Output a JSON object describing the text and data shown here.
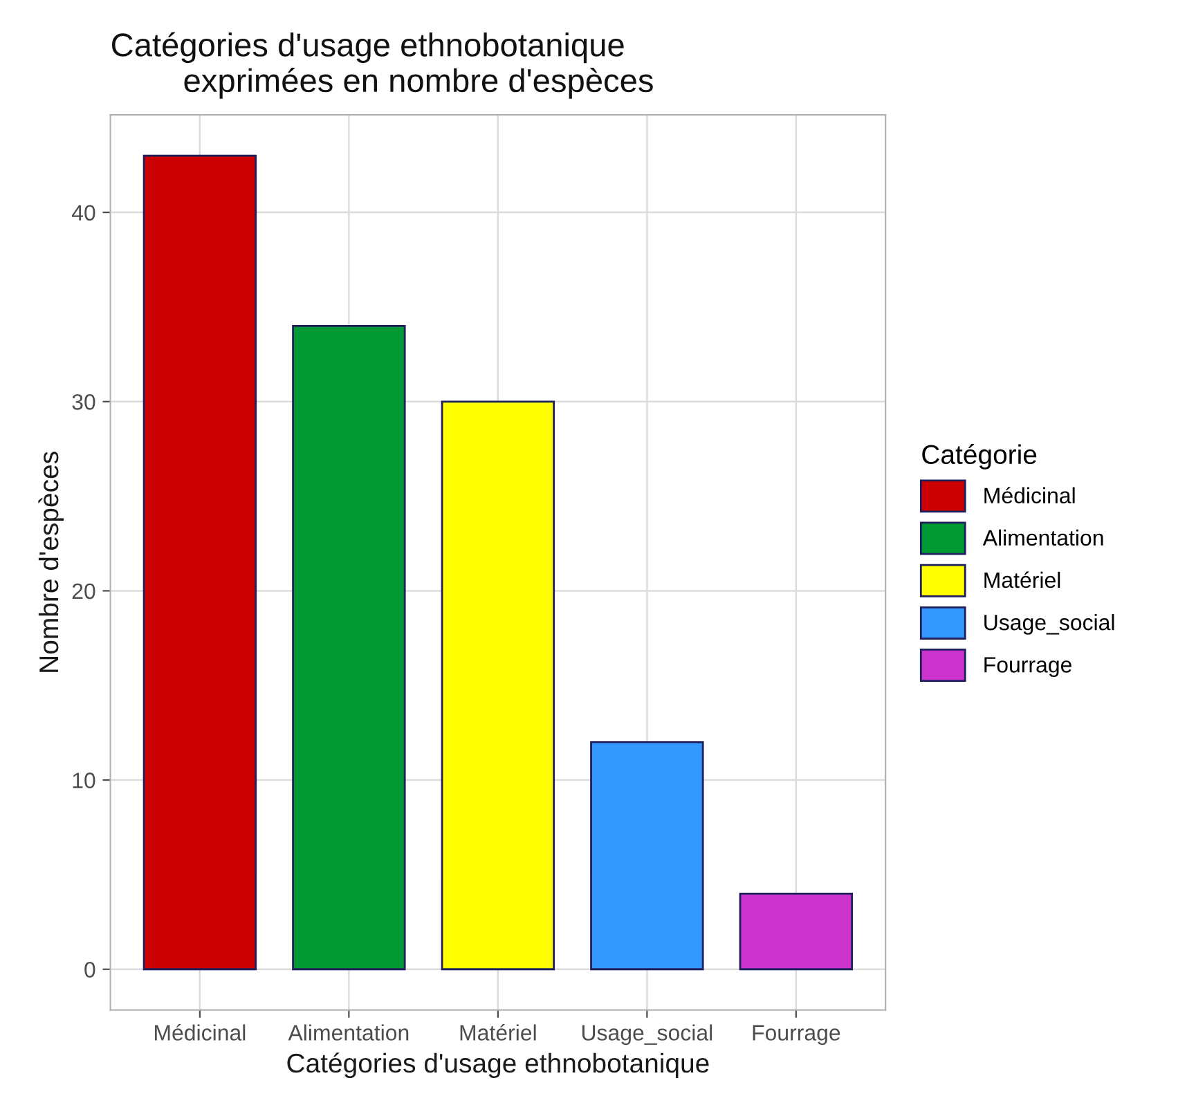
{
  "chart_data": {
    "type": "bar",
    "title": "Catégories d'usage ethnobotanique\n        exprimées en nombre d'espèces",
    "xlabel": "Catégories d'usage ethnobotanique",
    "ylabel": "Nombre d'espèces",
    "legend_title": "Catégorie",
    "categories": [
      "Médicinal",
      "Alimentation",
      "Matériel",
      "Usage_social",
      "Fourrage"
    ],
    "series": [
      {
        "name": "Médicinal",
        "color": "#cc0000",
        "values": [
          43,
          null,
          null,
          null,
          null
        ]
      },
      {
        "name": "Alimentation",
        "color": "#009933",
        "values": [
          null,
          34,
          null,
          null,
          null
        ]
      },
      {
        "name": "Matériel",
        "color": "#ffff00",
        "values": [
          null,
          null,
          30,
          null,
          null
        ]
      },
      {
        "name": "Usage_social",
        "color": "#3399ff",
        "values": [
          null,
          null,
          null,
          12,
          null
        ]
      },
      {
        "name": "Fourrage",
        "color": "#cc33cc",
        "values": [
          null,
          null,
          null,
          null,
          4
        ]
      }
    ],
    "ylim": [
      -2.15,
      45.15
    ],
    "yticks": [
      0,
      10,
      20,
      30,
      40
    ],
    "grid": true,
    "legend": "right"
  }
}
